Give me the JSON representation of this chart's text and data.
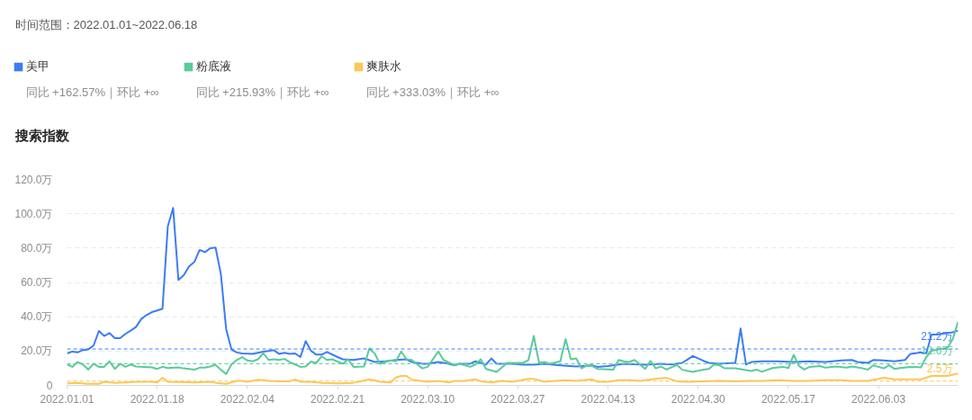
{
  "chart_data": {
    "type": "line",
    "title": "搜索指数",
    "subtitle": "时间范围：2022.01.01~2022.06.18",
    "annotations": [
      "同比 +162.57%｜环比 +∞",
      "同比 +215.93%｜环比 +∞",
      "同比 +333.03%｜环比 +∞"
    ],
    "xlim": [
      "2022-01-01",
      "2022-06-18"
    ],
    "ylim": [
      0,
      120
    ],
    "xticks": [
      {
        "value": "2022-01-01",
        "label": "2022.01.01"
      },
      {
        "value": "2022-01-18",
        "label": "2022.01.18"
      },
      {
        "value": "2022-02-04",
        "label": "2022.02.04"
      },
      {
        "value": "2022-02-21",
        "label": "2022.02.21"
      },
      {
        "value": "2022-03-10",
        "label": "2022.03.10"
      },
      {
        "value": "2022-03-27",
        "label": "2022.03.27"
      },
      {
        "value": "2022-04-13",
        "label": "2022.04.13"
      },
      {
        "value": "2022-04-30",
        "label": "2022.04.30"
      },
      {
        "value": "2022-05-17",
        "label": "2022.05.17"
      },
      {
        "value": "2022-06-03",
        "label": "2022.06.03"
      }
    ],
    "yticks": [
      0,
      {
        "value": 20,
        "label": "20.0万"
      },
      {
        "value": 40,
        "label": "40.0万"
      },
      {
        "value": 60,
        "label": "60.0万"
      },
      {
        "value": 80,
        "label": "80.0万"
      },
      {
        "value": 100,
        "label": "100.0万"
      },
      {
        "value": 120,
        "label": "120.0万"
      }
    ],
    "grid": "y",
    "legend": "top",
    "ref_lines": [
      {
        "axis": "y",
        "value": 21.2,
        "label": "21.2万",
        "color": "#3b7cf6",
        "line_style": "dashed"
      },
      {
        "axis": "y",
        "value": 12.6,
        "label": "12.6万",
        "color": "#5acb9b",
        "line_style": "dashed"
      },
      {
        "axis": "y",
        "value": 2.5,
        "label": "2.5万",
        "color": "#fbc756",
        "line_style": "dashed"
      }
    ],
    "series": [
      {
        "name": "美甲",
        "color": "#3b7cf6",
        "x": [
          "2022-01-01",
          "2022-01-02",
          "2022-01-03",
          "2022-01-04",
          "2022-01-05",
          "2022-01-06",
          "2022-01-07",
          "2022-01-08",
          "2022-01-09",
          "2022-01-10",
          "2022-01-11",
          "2022-01-12",
          "2022-01-13",
          "2022-01-14",
          "2022-01-15",
          "2022-01-16",
          "2022-01-17",
          "2022-01-18",
          "2022-01-19",
          "2022-01-20",
          "2022-01-21",
          "2022-01-22",
          "2022-01-23",
          "2022-01-24",
          "2022-01-25",
          "2022-01-26",
          "2022-01-27",
          "2022-01-28",
          "2022-01-29",
          "2022-01-30",
          "2022-01-31",
          "2022-02-01",
          "2022-02-02",
          "2022-02-03",
          "2022-02-04",
          "2022-02-05",
          "2022-02-06",
          "2022-02-07",
          "2022-02-08",
          "2022-02-09",
          "2022-02-10",
          "2022-02-11",
          "2022-02-12",
          "2022-02-13",
          "2022-02-14",
          "2022-02-15",
          "2022-02-16",
          "2022-02-17",
          "2022-02-18",
          "2022-02-19",
          "2022-02-21",
          "2022-02-22",
          "2022-02-24",
          "2022-02-26",
          "2022-02-28",
          "2022-03-02",
          "2022-03-04",
          "2022-03-06",
          "2022-03-07",
          "2022-03-09",
          "2022-03-10",
          "2022-03-12",
          "2022-03-14",
          "2022-03-15",
          "2022-03-16",
          "2022-03-18",
          "2022-03-19",
          "2022-03-21",
          "2022-03-22",
          "2022-03-23",
          "2022-03-26",
          "2022-03-28",
          "2022-03-30",
          "2022-04-01",
          "2022-04-04",
          "2022-04-07",
          "2022-04-10",
          "2022-04-11",
          "2022-04-13",
          "2022-04-16",
          "2022-04-20",
          "2022-04-23",
          "2022-04-25",
          "2022-04-27",
          "2022-04-29",
          "2022-05-01",
          "2022-05-02",
          "2022-05-04",
          "2022-05-07",
          "2022-05-08",
          "2022-05-09",
          "2022-05-10",
          "2022-05-12",
          "2022-05-15",
          "2022-05-18",
          "2022-05-21",
          "2022-05-24",
          "2022-05-27",
          "2022-05-29",
          "2022-05-30",
          "2022-06-01",
          "2022-06-02",
          "2022-06-04",
          "2022-06-06",
          "2022-06-08",
          "2022-06-09",
          "2022-06-11",
          "2022-06-12",
          "2022-06-13",
          "2022-06-14",
          "2022-06-17",
          "2022-06-18"
        ],
        "values": [
          18.6,
          19.7,
          19.2,
          20.6,
          21.0,
          23.2,
          31.7,
          28.8,
          30.5,
          27.5,
          27.5,
          30.0,
          31.9,
          34.0,
          38.7,
          41.0,
          42.7,
          43.6,
          44.7,
          92.8,
          103.4,
          61.4,
          64.2,
          69.3,
          71.9,
          78.9,
          77.6,
          79.9,
          80.3,
          64.9,
          32.8,
          20.9,
          19.2,
          18.6,
          18.5,
          18.3,
          19.0,
          19.7,
          20.1,
          20.5,
          18.3,
          19.0,
          18.3,
          18.6,
          16.5,
          25.8,
          20.1,
          17.9,
          17.9,
          19.5,
          16.5,
          15.2,
          14.8,
          15.7,
          13.6,
          14.0,
          14.8,
          15.2,
          13.6,
          12.6,
          12.6,
          13.6,
          12.6,
          11.7,
          12.6,
          12.6,
          14.0,
          12.2,
          15.7,
          12.6,
          12.6,
          12.0,
          12.0,
          12.6,
          11.7,
          11.0,
          11.7,
          10.8,
          11.3,
          12.6,
          12.0,
          12.6,
          12.2,
          13.1,
          17.1,
          14.3,
          13.1,
          12.6,
          13.1,
          33.1,
          12.2,
          13.6,
          14.0,
          14.0,
          13.6,
          14.0,
          13.6,
          14.5,
          14.8,
          13.6,
          13.1,
          14.8,
          14.5,
          14.0,
          14.8,
          18.3,
          19.2,
          18.6,
          29.6,
          29.6,
          30.9,
          31.9
        ]
      },
      {
        "name": "粉底液",
        "color": "#5acb9b",
        "x": [
          "2022-01-01",
          "2022-01-02",
          "2022-01-03",
          "2022-01-04",
          "2022-01-05",
          "2022-01-06",
          "2022-01-07",
          "2022-01-08",
          "2022-01-09",
          "2022-01-10",
          "2022-01-11",
          "2022-01-12",
          "2022-01-13",
          "2022-01-14",
          "2022-01-17",
          "2022-01-18",
          "2022-01-19",
          "2022-01-20",
          "2022-01-22",
          "2022-01-23",
          "2022-01-25",
          "2022-01-26",
          "2022-01-27",
          "2022-01-28",
          "2022-01-29",
          "2022-01-30",
          "2022-01-31",
          "2022-02-01",
          "2022-02-02",
          "2022-02-03",
          "2022-02-04",
          "2022-02-05",
          "2022-02-06",
          "2022-02-07",
          "2022-02-08",
          "2022-02-09",
          "2022-02-10",
          "2022-02-11",
          "2022-02-12",
          "2022-02-13",
          "2022-02-14",
          "2022-02-15",
          "2022-02-16",
          "2022-02-17",
          "2022-02-18",
          "2022-02-19",
          "2022-02-20",
          "2022-02-22",
          "2022-02-23",
          "2022-02-24",
          "2022-02-26",
          "2022-02-27",
          "2022-02-28",
          "2022-03-01",
          "2022-03-03",
          "2022-03-04",
          "2022-03-05",
          "2022-03-06",
          "2022-03-07",
          "2022-03-09",
          "2022-03-10",
          "2022-03-12",
          "2022-03-13",
          "2022-03-15",
          "2022-03-16",
          "2022-03-18",
          "2022-03-19",
          "2022-03-20",
          "2022-03-21",
          "2022-03-23",
          "2022-03-25",
          "2022-03-28",
          "2022-03-29",
          "2022-03-30",
          "2022-03-31",
          "2022-04-01",
          "2022-04-02",
          "2022-04-04",
          "2022-04-05",
          "2022-04-06",
          "2022-04-07",
          "2022-04-08",
          "2022-04-09",
          "2022-04-10",
          "2022-04-11",
          "2022-04-14",
          "2022-04-15",
          "2022-04-16",
          "2022-04-17",
          "2022-04-18",
          "2022-04-20",
          "2022-04-21",
          "2022-04-22",
          "2022-04-23",
          "2022-04-24",
          "2022-04-26",
          "2022-04-27",
          "2022-04-29",
          "2022-05-01",
          "2022-05-02",
          "2022-05-03",
          "2022-05-04",
          "2022-05-05",
          "2022-05-07",
          "2022-05-10",
          "2022-05-11",
          "2022-05-12",
          "2022-05-14",
          "2022-05-16",
          "2022-05-17",
          "2022-05-18",
          "2022-05-19",
          "2022-05-20",
          "2022-05-21",
          "2022-05-23",
          "2022-05-24",
          "2022-05-26",
          "2022-05-28",
          "2022-05-29",
          "2022-05-31",
          "2022-06-01",
          "2022-06-02",
          "2022-06-04",
          "2022-06-05",
          "2022-06-06",
          "2022-06-07",
          "2022-06-09",
          "2022-06-11",
          "2022-06-12",
          "2022-06-13",
          "2022-06-14",
          "2022-06-16",
          "2022-06-17",
          "2022-06-18"
        ],
        "values": [
          12.2,
          10.8,
          13.6,
          12.2,
          9.2,
          12.6,
          10.8,
          10.8,
          14.0,
          9.6,
          12.6,
          10.8,
          12.2,
          11.0,
          10.5,
          9.6,
          10.8,
          10.1,
          10.5,
          9.9,
          9.2,
          10.3,
          10.3,
          11.0,
          11.9,
          9.1,
          6.6,
          12.2,
          14.8,
          16.5,
          14.5,
          14.0,
          15.2,
          18.8,
          14.8,
          15.2,
          14.8,
          15.4,
          13.6,
          12.2,
          10.8,
          11.0,
          13.9,
          13.1,
          16.9,
          14.8,
          15.2,
          12.6,
          15.2,
          10.8,
          11.0,
          21.5,
          18.6,
          12.6,
          14.5,
          14.0,
          19.7,
          15.2,
          14.8,
          9.9,
          10.8,
          19.7,
          14.8,
          11.8,
          12.6,
          10.8,
          12.2,
          15.2,
          9.6,
          7.9,
          13.1,
          13.1,
          14.8,
          28.8,
          13.1,
          13.6,
          12.6,
          14.0,
          27.0,
          15.2,
          15.7,
          9.9,
          11.6,
          11.3,
          9.6,
          9.2,
          14.8,
          14.0,
          13.6,
          14.8,
          9.6,
          14.3,
          9.9,
          11.0,
          9.2,
          11.9,
          9.1,
          7.9,
          9.2,
          9.6,
          12.2,
          11.7,
          9.9,
          9.9,
          8.4,
          9.2,
          7.9,
          10.1,
          10.8,
          10.1,
          17.8,
          11.3,
          9.2,
          10.8,
          11.3,
          10.3,
          11.0,
          10.3,
          11.0,
          9.9,
          9.2,
          11.7,
          9.9,
          11.7,
          9.6,
          10.1,
          10.8,
          10.5,
          16.5,
          20.0,
          20.9,
          21.8,
          27.0,
          37.0
        ]
      },
      {
        "name": "爽肤水",
        "color": "#fbc756",
        "x": [
          "2022-01-01",
          "2022-01-03",
          "2022-01-05",
          "2022-01-07",
          "2022-01-08",
          "2022-01-10",
          "2022-01-12",
          "2022-01-14",
          "2022-01-17",
          "2022-01-18",
          "2022-01-19",
          "2022-01-20",
          "2022-01-22",
          "2022-01-25",
          "2022-01-27",
          "2022-01-28",
          "2022-01-29",
          "2022-01-31",
          "2022-02-02",
          "2022-02-03",
          "2022-02-04",
          "2022-02-06",
          "2022-02-07",
          "2022-02-08",
          "2022-02-10",
          "2022-02-12",
          "2022-02-13",
          "2022-02-14",
          "2022-02-16",
          "2022-02-18",
          "2022-02-21",
          "2022-02-24",
          "2022-02-27",
          "2022-03-01",
          "2022-03-03",
          "2022-03-04",
          "2022-03-05",
          "2022-03-06",
          "2022-03-07",
          "2022-03-10",
          "2022-03-12",
          "2022-03-14",
          "2022-03-15",
          "2022-03-17",
          "2022-03-19",
          "2022-03-20",
          "2022-03-22",
          "2022-03-24",
          "2022-03-26",
          "2022-03-29",
          "2022-03-30",
          "2022-04-01",
          "2022-04-03",
          "2022-04-05",
          "2022-04-07",
          "2022-04-10",
          "2022-04-11",
          "2022-04-13",
          "2022-04-15",
          "2022-04-17",
          "2022-04-19",
          "2022-04-22",
          "2022-04-24",
          "2022-04-26",
          "2022-04-28",
          "2022-05-01",
          "2022-05-04",
          "2022-05-07",
          "2022-05-10",
          "2022-05-12",
          "2022-05-15",
          "2022-05-18",
          "2022-05-21",
          "2022-05-24",
          "2022-05-27",
          "2022-05-29",
          "2022-06-01",
          "2022-06-03",
          "2022-06-04",
          "2022-06-06",
          "2022-06-08",
          "2022-06-11",
          "2022-06-13",
          "2022-06-14",
          "2022-06-16",
          "2022-06-18"
        ],
        "values": [
          1.2,
          1.5,
          0.9,
          0.9,
          2.1,
          1.5,
          1.7,
          2.1,
          2.1,
          1.7,
          4.4,
          2.1,
          1.9,
          1.7,
          1.9,
          2.1,
          1.5,
          0.9,
          2.6,
          2.6,
          2.1,
          3.3,
          3.0,
          2.6,
          2.4,
          2.4,
          3.5,
          2.1,
          2.1,
          1.5,
          1.2,
          1.5,
          3.5,
          2.1,
          1.7,
          4.6,
          5.5,
          5.5,
          3.3,
          2.1,
          2.6,
          1.7,
          2.6,
          2.6,
          3.5,
          2.4,
          1.7,
          2.6,
          2.1,
          3.8,
          3.8,
          2.1,
          2.6,
          3.0,
          2.6,
          3.5,
          2.1,
          2.1,
          3.0,
          3.0,
          2.6,
          3.8,
          4.4,
          2.4,
          2.1,
          2.4,
          2.6,
          2.4,
          2.6,
          2.6,
          3.0,
          2.6,
          2.6,
          3.0,
          3.0,
          2.6,
          2.6,
          3.8,
          4.4,
          3.5,
          3.5,
          3.5,
          5.5,
          5.5,
          5.5,
          6.9
        ]
      }
    ]
  }
}
